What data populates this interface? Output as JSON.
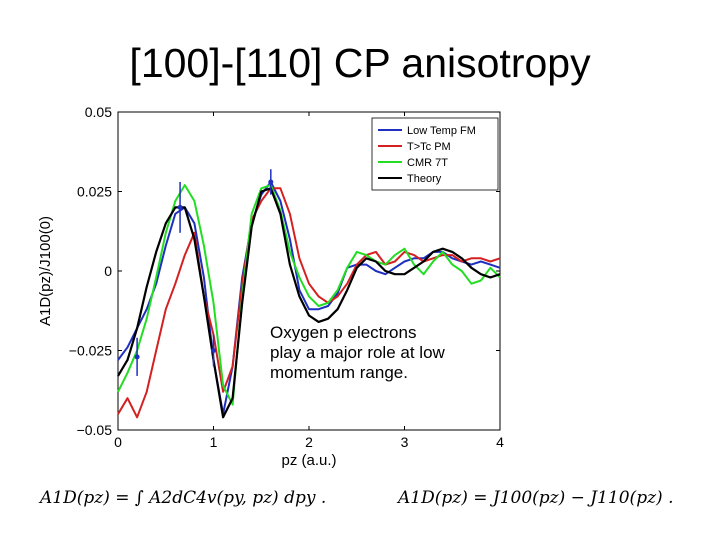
{
  "slide": {
    "title": "[100]-[110] CP anisotropy",
    "annotation_line1": "Oxygen p electrons",
    "annotation_line2": "play a major role at low",
    "annotation_line3": "momentum range.",
    "formula_left": "A1D(pz) = ∫ A2dC4v(py, pz) dpy .",
    "formula_right": "A1D(pz) = J100(pz) − J110(pz) ."
  },
  "chart_data": {
    "type": "line",
    "title": "",
    "xlabel": "pz (a.u.)",
    "ylabel": "A1D(pz)/J100(0)",
    "xlim": [
      0,
      4
    ],
    "ylim": [
      -0.05,
      0.05
    ],
    "x_ticks": [
      "0",
      "1",
      "2",
      "3",
      "4"
    ],
    "y_ticks": [
      "0.05",
      "0.025",
      "0",
      "−0.025",
      "−0.05"
    ],
    "legend": [
      "Low Temp FM",
      "T>Tc PM",
      "CMR 7T",
      "Theory"
    ],
    "legend_position": "top-right",
    "x": [
      0,
      0.1,
      0.2,
      0.3,
      0.4,
      0.5,
      0.6,
      0.7,
      0.8,
      0.9,
      1.0,
      1.1,
      1.2,
      1.3,
      1.4,
      1.5,
      1.6,
      1.7,
      1.8,
      1.9,
      2.0,
      2.1,
      2.2,
      2.3,
      2.4,
      2.5,
      2.6,
      2.7,
      2.8,
      2.9,
      3.0,
      3.1,
      3.2,
      3.3,
      3.4,
      3.5,
      3.6,
      3.7,
      3.8,
      3.9,
      4.0
    ],
    "series": [
      {
        "name": "Low Temp FM",
        "color": "#1f2fbf",
        "values": [
          -0.028,
          -0.024,
          -0.018,
          -0.012,
          -0.004,
          0.008,
          0.018,
          0.02,
          0.015,
          -0.002,
          -0.028,
          -0.045,
          -0.03,
          -0.002,
          0.015,
          0.024,
          0.028,
          0.022,
          0.01,
          -0.006,
          -0.012,
          -0.012,
          -0.011,
          -0.007,
          0.001,
          0.002,
          0.002,
          0.0,
          -0.001,
          0.001,
          0.003,
          0.004,
          0.004,
          0.006,
          0.006,
          0.004,
          0.003,
          0.002,
          0.003,
          0.002,
          0.001
        ]
      },
      {
        "name": "T>Tc PM",
        "color": "#d42020",
        "values": [
          -0.045,
          -0.04,
          -0.046,
          -0.038,
          -0.025,
          -0.012,
          -0.004,
          0.005,
          0.012,
          -0.008,
          -0.02,
          -0.038,
          -0.03,
          -0.004,
          0.016,
          0.022,
          0.026,
          0.026,
          0.018,
          0.004,
          -0.004,
          -0.008,
          -0.01,
          -0.008,
          -0.004,
          0.002,
          0.005,
          0.006,
          0.002,
          0.003,
          0.006,
          0.005,
          0.003,
          0.004,
          0.005,
          0.005,
          0.003,
          0.004,
          0.004,
          0.003,
          0.004
        ]
      },
      {
        "name": "CMR 7T",
        "color": "#22dd22",
        "values": [
          -0.038,
          -0.032,
          -0.025,
          -0.015,
          -0.002,
          0.012,
          0.022,
          0.027,
          0.022,
          0.008,
          -0.01,
          -0.036,
          -0.042,
          -0.008,
          0.018,
          0.026,
          0.027,
          0.019,
          0.006,
          -0.002,
          -0.008,
          -0.011,
          -0.01,
          -0.006,
          0.001,
          0.006,
          0.005,
          0.003,
          0.002,
          0.005,
          0.007,
          0.002,
          -0.001,
          0.003,
          0.006,
          0.002,
          0.0,
          -0.004,
          -0.003,
          0.001,
          -0.002
        ]
      },
      {
        "name": "Theory",
        "color": "#000000",
        "values": [
          -0.033,
          -0.028,
          -0.018,
          -0.005,
          0.006,
          0.015,
          0.02,
          0.02,
          0.01,
          -0.008,
          -0.028,
          -0.046,
          -0.04,
          -0.01,
          0.014,
          0.025,
          0.026,
          0.018,
          0.002,
          -0.008,
          -0.014,
          -0.016,
          -0.015,
          -0.012,
          -0.006,
          0.001,
          0.004,
          0.003,
          0.0,
          -0.001,
          -0.001,
          0.001,
          0.003,
          0.006,
          0.007,
          0.006,
          0.004,
          0.001,
          -0.001,
          -0.002,
          -0.001
        ]
      }
    ],
    "error_bar_points": [
      {
        "x": 0.2,
        "y": -0.027,
        "err": 0.006
      },
      {
        "x": 0.65,
        "y": 0.02,
        "err": 0.008
      },
      {
        "x": 1.0,
        "y": -0.025,
        "err": 0.005
      },
      {
        "x": 1.6,
        "y": 0.028,
        "err": 0.004
      }
    ]
  }
}
